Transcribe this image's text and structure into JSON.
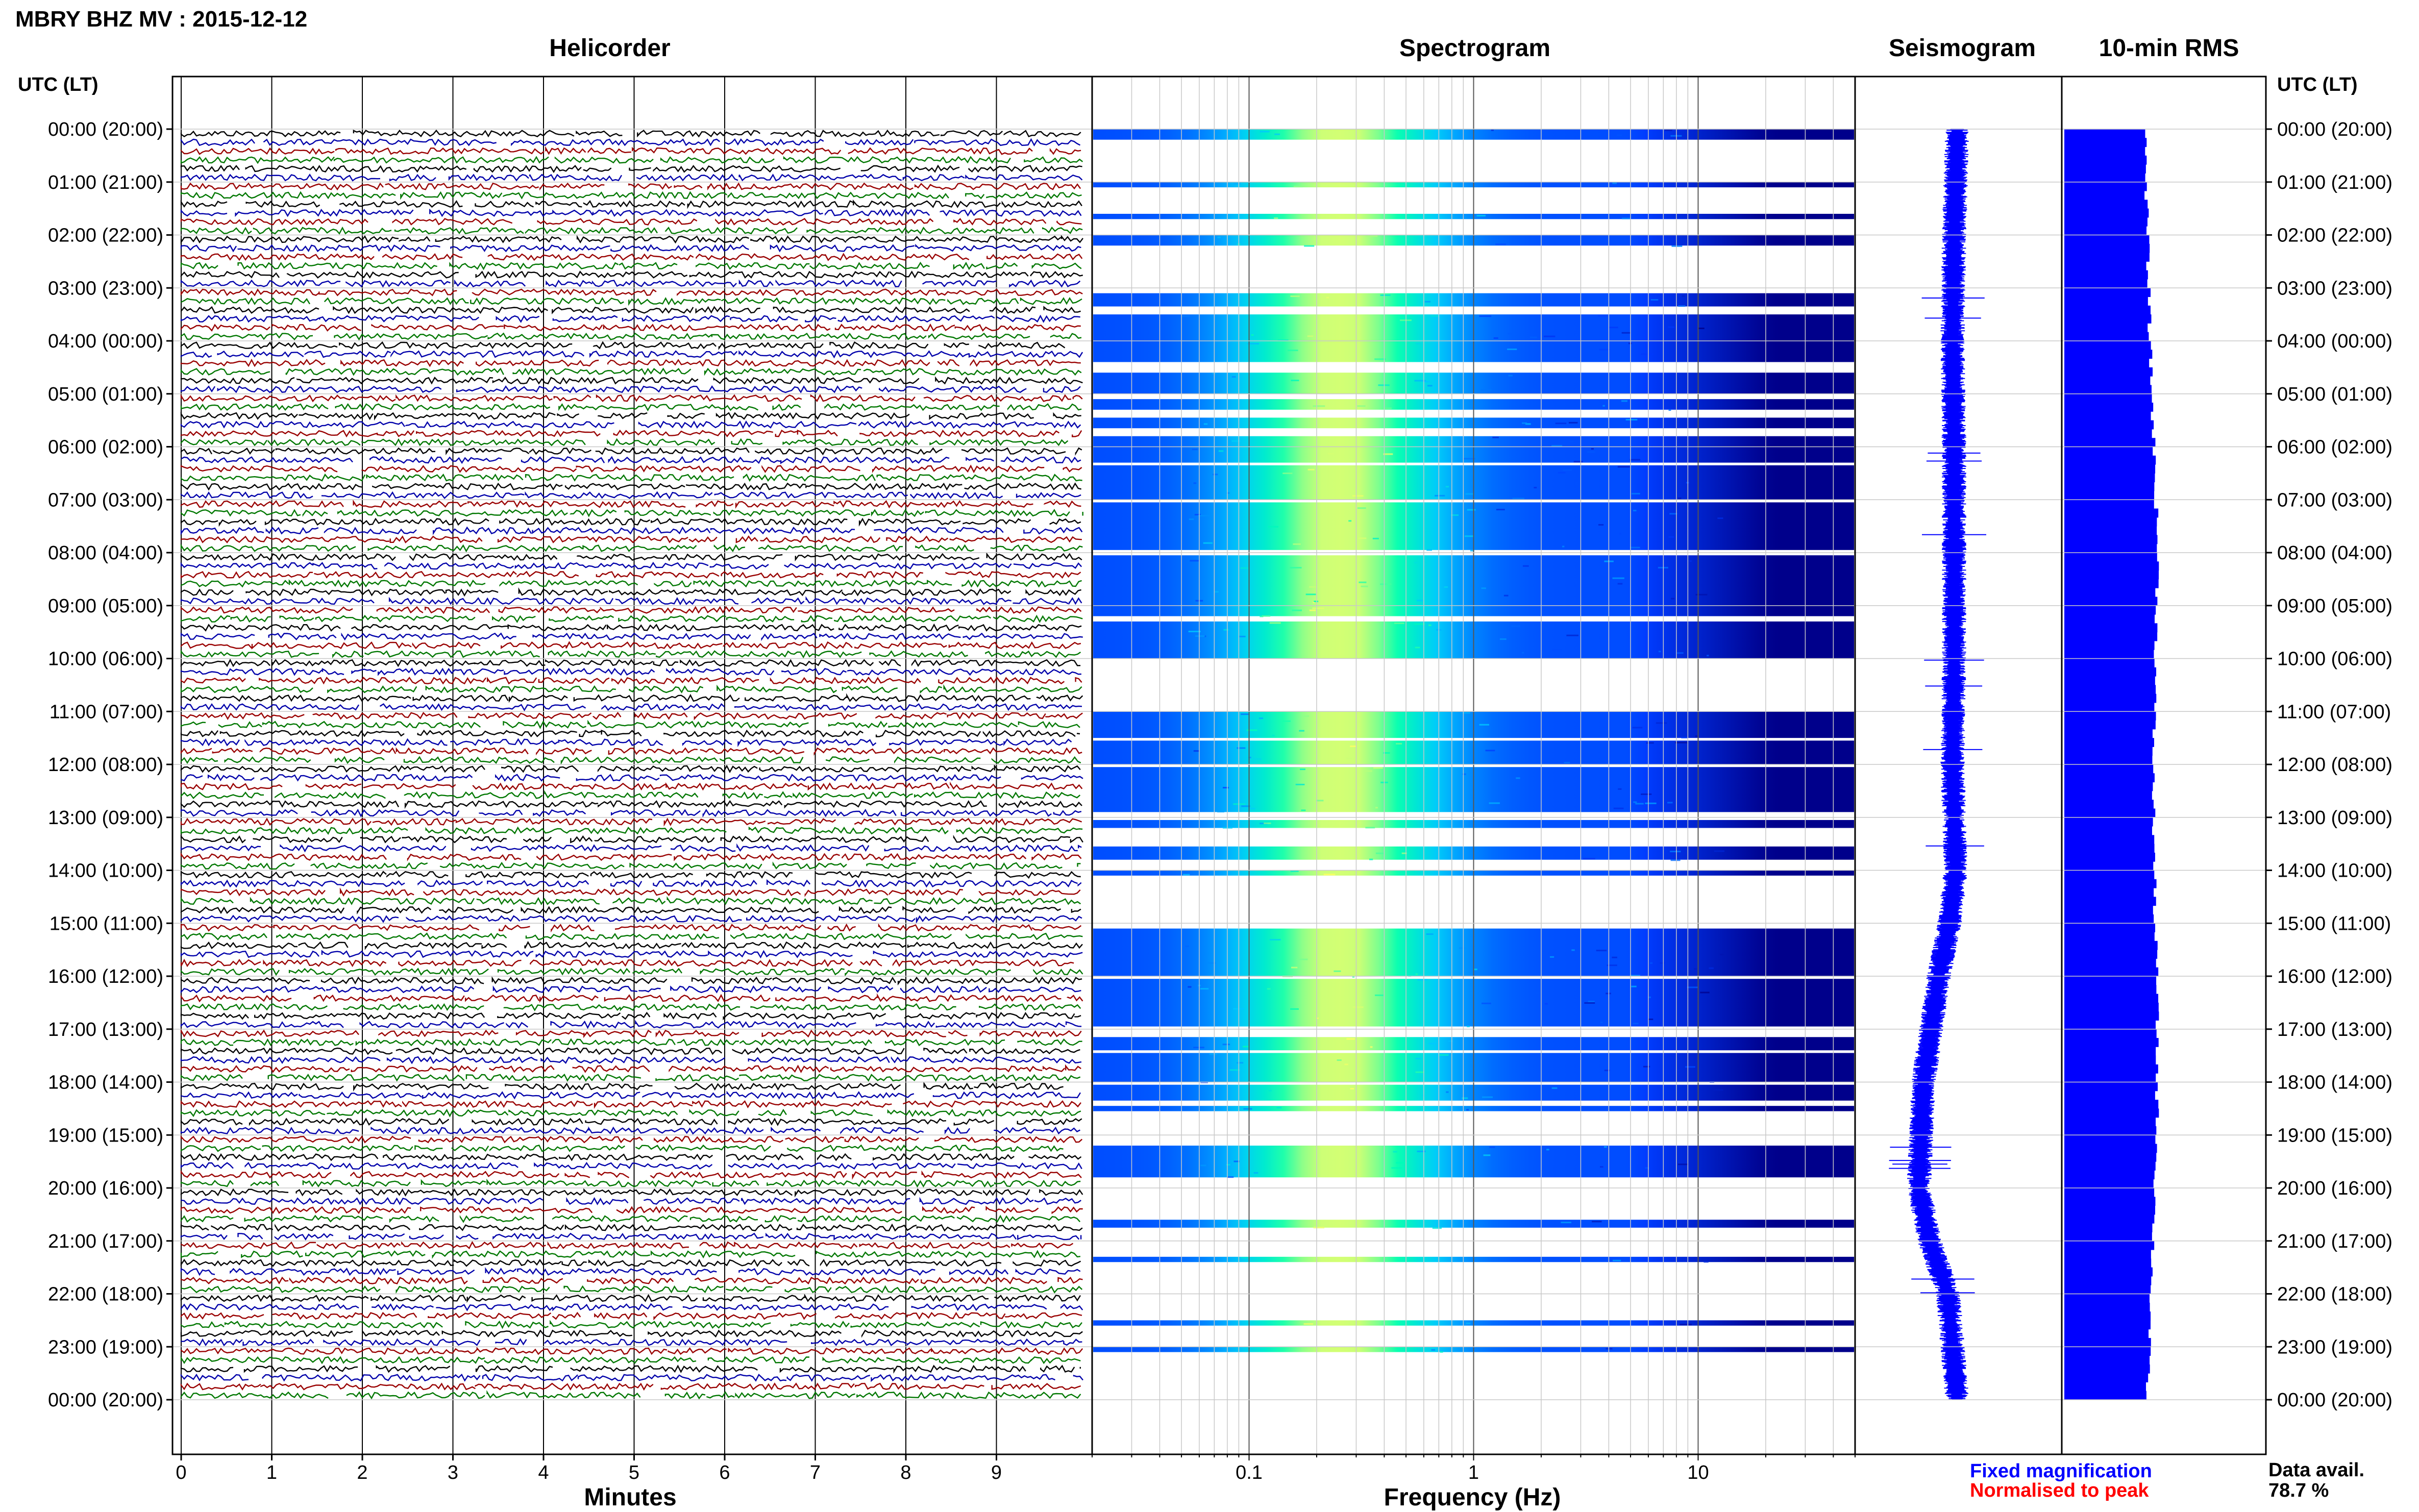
{
  "header": {
    "title": "MBRY BHZ MV : 2015-12-12"
  },
  "panels": {
    "helicorder": "Helicorder",
    "spectrogram": "Spectrogram",
    "seismogram": "Seismogram",
    "rms": "10-min RMS"
  },
  "axes": {
    "time_label_left": "UTC (LT)",
    "time_label_right": "UTC (LT)",
    "minutes_label": "Minutes",
    "frequency_label": "Frequency (Hz)"
  },
  "legend": {
    "fixed": "Fixed magnification",
    "normalised": "Normalised to peak",
    "fixed_color": "#0000ff",
    "normalised_color": "#ff0000"
  },
  "availability": {
    "label": "Data avail.",
    "value": "78.7 %"
  },
  "colors": {
    "trace_cycle": [
      "#000000",
      "#0000aa",
      "#990000",
      "#007700"
    ],
    "rms_fill": "#0000ff",
    "spectrogram_low": "#00008b",
    "spectrogram_high": "#ffff66"
  },
  "chart_data": [
    {
      "type": "line",
      "panel": "Helicorder",
      "x_ticks": [
        "0",
        "1",
        "2",
        "3",
        "4",
        "5",
        "6",
        "7",
        "8",
        "9"
      ],
      "xlim": [
        0,
        10
      ],
      "xlabel": "Minutes",
      "y_ticks": [
        "00:00 (20:00)",
        "01:00 (21:00)",
        "02:00 (22:00)",
        "03:00 (23:00)",
        "04:00 (00:00)",
        "05:00 (01:00)",
        "06:00 (02:00)",
        "07:00 (03:00)",
        "08:00 (04:00)",
        "09:00 (05:00)",
        "10:00 (06:00)",
        "11:00 (07:00)",
        "12:00 (08:00)",
        "13:00 (09:00)",
        "14:00 (10:00)",
        "15:00 (11:00)",
        "16:00 (12:00)",
        "17:00 (13:00)",
        "18:00 (14:00)",
        "19:00 (15:00)",
        "20:00 (16:00)",
        "21:00 (17:00)",
        "22:00 (18:00)",
        "23:00 (19:00)",
        "00:00 (20:00)"
      ],
      "ylabel": "UTC (LT)",
      "traces_per_hour": 6,
      "grid": true
    },
    {
      "type": "heatmap",
      "panel": "Spectrogram",
      "x_ticks": [
        "0.1",
        "1",
        "10"
      ],
      "x_scale": "log",
      "xlim": [
        0.02,
        50
      ],
      "xlabel": "Frequency (Hz)",
      "data_hours_utc": [
        [
          0.0,
          0.2
        ],
        [
          1.0,
          1.1
        ],
        [
          1.6,
          1.7
        ],
        [
          2.0,
          2.2
        ],
        [
          3.1,
          3.35
        ],
        [
          3.5,
          4.4
        ],
        [
          4.6,
          5.0
        ],
        [
          5.1,
          5.3
        ],
        [
          5.45,
          5.65
        ],
        [
          5.8,
          6.3
        ],
        [
          6.35,
          7.0
        ],
        [
          7.05,
          7.95
        ],
        [
          8.05,
          9.2
        ],
        [
          9.3,
          10.0
        ],
        [
          11.0,
          11.5
        ],
        [
          11.55,
          12.0
        ],
        [
          12.05,
          12.9
        ],
        [
          13.05,
          13.2
        ],
        [
          13.55,
          13.8
        ],
        [
          14.0,
          14.1
        ],
        [
          15.1,
          16.0
        ],
        [
          16.05,
          16.95
        ],
        [
          17.15,
          17.4
        ],
        [
          17.45,
          18.0
        ],
        [
          18.05,
          18.35
        ],
        [
          18.45,
          18.55
        ],
        [
          19.2,
          19.8
        ],
        [
          20.6,
          20.75
        ],
        [
          21.3,
          21.4
        ],
        [
          22.5,
          22.6
        ],
        [
          23.0,
          23.1
        ]
      ],
      "grid": true
    },
    {
      "type": "line",
      "panel": "Seismogram",
      "hours": [
        0,
        2,
        4,
        6,
        8,
        10,
        12,
        14,
        15,
        16,
        18,
        20,
        21,
        22,
        24
      ],
      "relative_offset": [
        0.0,
        -0.02,
        -0.03,
        -0.02,
        -0.02,
        -0.02,
        -0.03,
        -0.01,
        -0.05,
        -0.12,
        -0.22,
        -0.25,
        -0.18,
        -0.06,
        0.0
      ]
    },
    {
      "type": "bar",
      "panel": "10-min RMS",
      "hours": [
        0,
        4,
        8,
        12,
        15,
        16,
        19,
        23.9
      ],
      "relative_level": [
        0.8,
        0.85,
        0.93,
        0.88,
        0.9,
        0.92,
        0.92,
        0.82
      ]
    }
  ]
}
